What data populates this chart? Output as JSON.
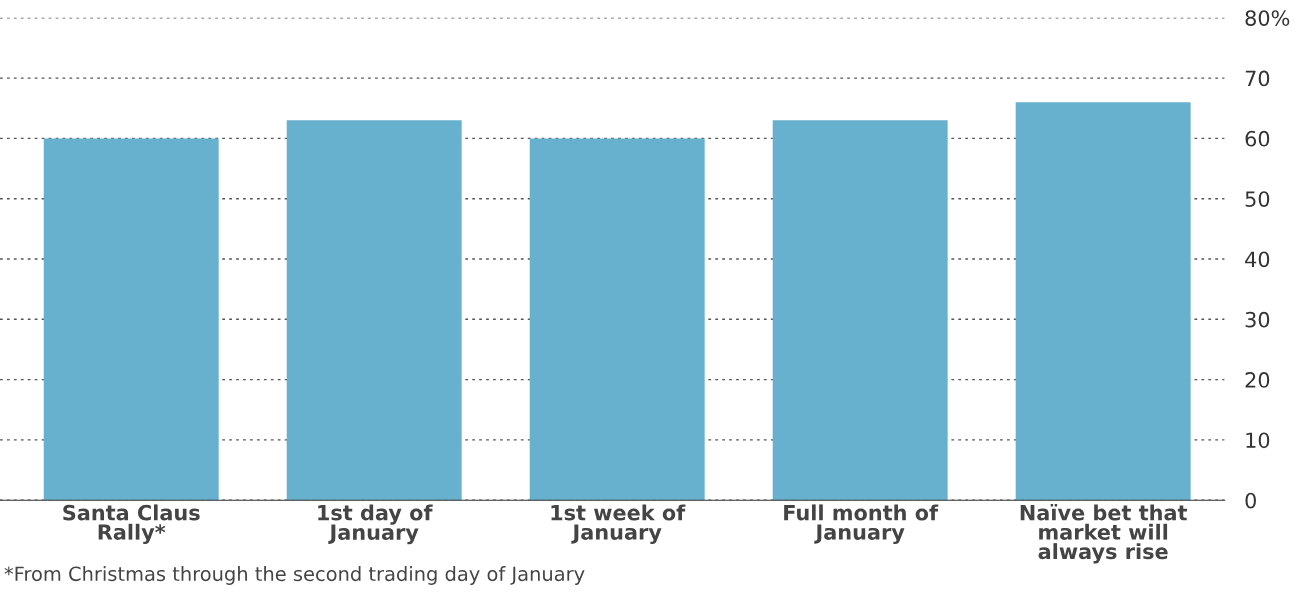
{
  "chart_data": {
    "type": "bar",
    "categories": [
      "Santa Claus\nRally*",
      "1st day of\nJanuary",
      "1st week of\nJanuary",
      "Full month of\nJanuary",
      "Naïve bet that\nmarket will\nalways rise"
    ],
    "values": [
      60,
      63,
      60,
      63,
      66
    ],
    "color": "#67b1cf",
    "ylim": [
      0,
      80
    ],
    "yticks": [
      0,
      10,
      20,
      30,
      40,
      50,
      60,
      70,
      {
        "value": 80,
        "label": "80%"
      }
    ],
    "grid": "y",
    "annotations": [
      "*From Christmas through the second trading day of January"
    ]
  }
}
